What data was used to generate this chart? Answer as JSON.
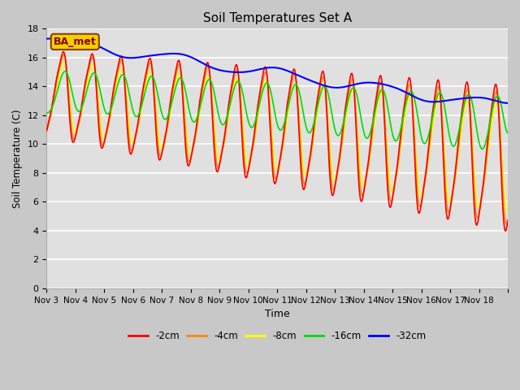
{
  "title": "Soil Temperatures Set A",
  "xlabel": "Time",
  "ylabel": "Soil Temperature (C)",
  "ylim": [
    0,
    18
  ],
  "yticks": [
    0,
    2,
    4,
    6,
    8,
    10,
    12,
    14,
    16,
    18
  ],
  "legend_labels": [
    "-2cm",
    "-4cm",
    "-8cm",
    "-16cm",
    "-32cm"
  ],
  "legend_colors": [
    "#ff0000",
    "#ff8800",
    "#ffff00",
    "#00dd00",
    "#0000ff"
  ],
  "xtick_labels": [
    "Nov 3",
    "Nov 4",
    "Nov 5",
    "Nov 6",
    "Nov 7",
    "Nov 8",
    "Nov 9",
    "Nov 10",
    "Nov 11",
    "Nov 12",
    "Nov 13",
    "Nov 14",
    "Nov 15",
    "Nov 16",
    "Nov 17",
    "Nov 18"
  ],
  "annotation_text": "BA_met",
  "fig_bg": "#c8c8c8",
  "plot_bg": "#e0e0e0",
  "line_width": 1.2
}
